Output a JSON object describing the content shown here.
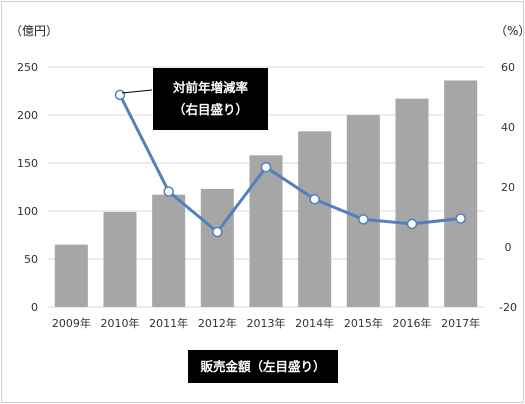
{
  "chart_data": {
    "type": "bar",
    "combo": "bar+line",
    "categories": [
      "2009年",
      "2010年",
      "2011年",
      "2012年",
      "2013年",
      "2014年",
      "2015年",
      "2016年",
      "2017年"
    ],
    "series": [
      {
        "name": "販売金額（左目盛り）",
        "type": "bar",
        "axis": "left",
        "color": "#a6a6a6",
        "values": [
          65,
          99,
          117,
          123,
          158,
          183,
          200,
          217,
          236
        ]
      },
      {
        "name": "対前年増減率（右目盛り）",
        "type": "line",
        "axis": "right",
        "color": "#4f81bd",
        "values": [
          null,
          50.7,
          18.5,
          5.0,
          26.6,
          15.9,
          9.2,
          7.7,
          9.5
        ]
      }
    ],
    "left_axis": {
      "unit": "（億円）",
      "ylim": [
        0,
        250
      ],
      "ticks": [
        "250",
        "200",
        "150",
        "100",
        "50",
        "0"
      ]
    },
    "right_axis": {
      "unit": "（%）",
      "ylim": [
        -20,
        60
      ],
      "ticks": [
        "60",
        "40",
        "20",
        "0",
        "-20"
      ]
    },
    "legend": {
      "line_label": [
        "対前年増減率",
        "（右目盛り）"
      ],
      "bar_label": "販売金額（左目盛り）"
    },
    "grid": true
  }
}
